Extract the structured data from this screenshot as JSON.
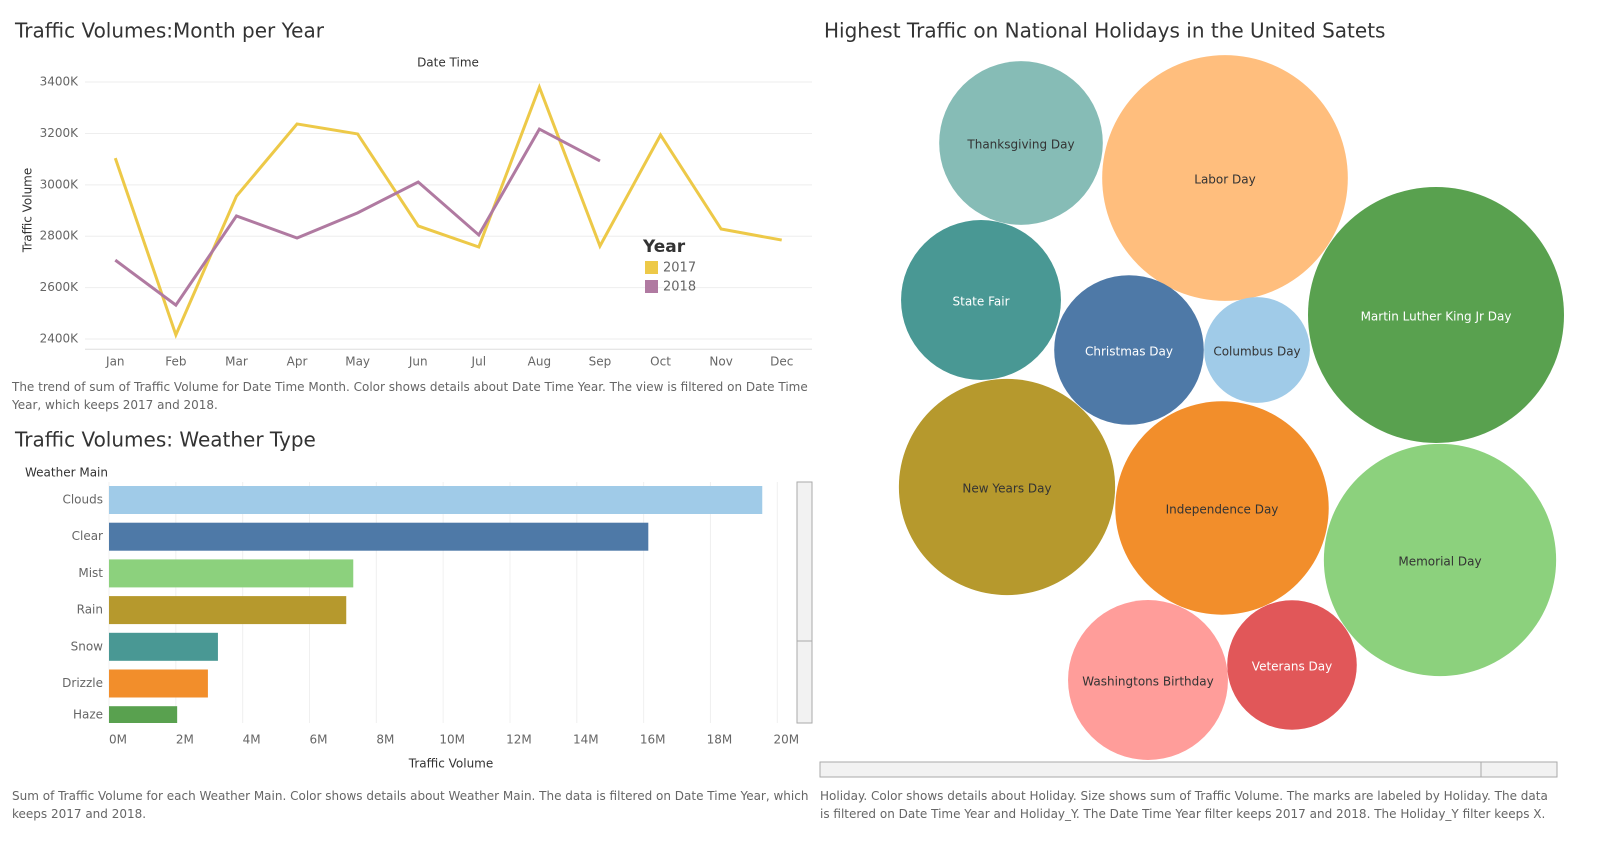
{
  "chart_data": [
    {
      "type": "line",
      "title": "Traffic Volumes:Month per Year",
      "x_label": "Date Time",
      "y_label": "Traffic Volume",
      "categories": [
        "Jan",
        "Feb",
        "Mar",
        "Apr",
        "May",
        "Jun",
        "Jul",
        "Aug",
        "Sep",
        "Oct",
        "Nov",
        "Dec"
      ],
      "series": [
        {
          "name": "2017",
          "color": "#edc948",
          "values": [
            3104000,
            2416000,
            2956000,
            3237000,
            3198000,
            2840000,
            2758000,
            3380000,
            2762000,
            3194000,
            2828000,
            2785000
          ]
        },
        {
          "name": "2018",
          "color": "#b07aa1",
          "values": [
            2707000,
            2532000,
            2879000,
            2793000,
            2891000,
            3011000,
            2805000,
            3217000,
            3093000,
            null,
            null,
            null
          ]
        }
      ],
      "ylim": [
        2360000,
        3450000
      ],
      "yticks": [
        {
          "value": 2400000,
          "label": "2400K"
        },
        {
          "value": 2600000,
          "label": "2600K"
        },
        {
          "value": 2800000,
          "label": "2800K"
        },
        {
          "value": 3000000,
          "label": "3000K"
        },
        {
          "value": 3200000,
          "label": "3200K"
        },
        {
          "value": 3400000,
          "label": "3400K"
        }
      ],
      "grid": true,
      "legend_title": "Year",
      "caption": "The trend of sum of Traffic Volume for Date Time Month.  Color shows details about Date Time Year. The view is filtered on Date Time Year, which keeps 2017 and 2018."
    },
    {
      "type": "hbar",
      "title": "Traffic  Volumes: Weather Type",
      "y_label": "Weather Main",
      "x_label": "Traffic Volume",
      "categories": [
        "Clouds",
        "Clear",
        "Mist",
        "Rain",
        "Snow",
        "Drizzle",
        "Haze"
      ],
      "values": [
        19550000,
        16140000,
        7310000,
        7100000,
        3260000,
        2960000,
        2040000
      ],
      "colors": [
        "#a0cbe8",
        "#4e79a7",
        "#8cd17d",
        "#b6992d",
        "#499894",
        "#f28e2b",
        "#59a14f"
      ],
      "xlim": [
        0,
        20500000
      ],
      "xticks": [
        {
          "value": 0,
          "label": "0M"
        },
        {
          "value": 2000000,
          "label": "2M"
        },
        {
          "value": 4000000,
          "label": "4M"
        },
        {
          "value": 6000000,
          "label": "6M"
        },
        {
          "value": 8000000,
          "label": "8M"
        },
        {
          "value": 10000000,
          "label": "10M"
        },
        {
          "value": 12000000,
          "label": "12M"
        },
        {
          "value": 14000000,
          "label": "14M"
        },
        {
          "value": 16000000,
          "label": "16M"
        },
        {
          "value": 18000000,
          "label": "18M"
        },
        {
          "value": 20000000,
          "label": "20M"
        }
      ],
      "grid": true,
      "caption": "Sum of Traffic Volume for each Weather Main.  Color shows details about Weather Main. The data is filtered on Date Time Year, which keeps 2017 and 2018."
    },
    {
      "type": "packed_bubble",
      "title": "Highest Traffic on National Holidays in the United Satets",
      "categories": [
        "Thanksgiving Day",
        "Labor Day",
        "State Fair",
        "Christmas Day",
        "Columbus Day",
        "Martin Luther King Jr Day",
        "New Years Day",
        "Independence Day",
        "Memorial Day",
        "Washingtons Birthday",
        "Veterans Day"
      ],
      "values": [
        6700,
        15100,
        6400,
        5600,
        2800,
        16400,
        11700,
        11400,
        13500,
        6400,
        4200
      ],
      "colors": [
        "#86bcb6",
        "#ffbe7d",
        "#499894",
        "#4e79a7",
        "#a0cbe8",
        "#59a14f",
        "#b6992d",
        "#f28e2b",
        "#8cd17d",
        "#ff9d9a",
        "#e15759"
      ],
      "caption": "Holiday.  Color shows details about Holiday.  Size shows sum of Traffic Volume.  The marks are labeled by Holiday. The data is filtered on Date Time Year and Holiday_Y. The Date Time Year filter keeps 2017 and 2018. The Holiday_Y filter keeps X."
    }
  ]
}
